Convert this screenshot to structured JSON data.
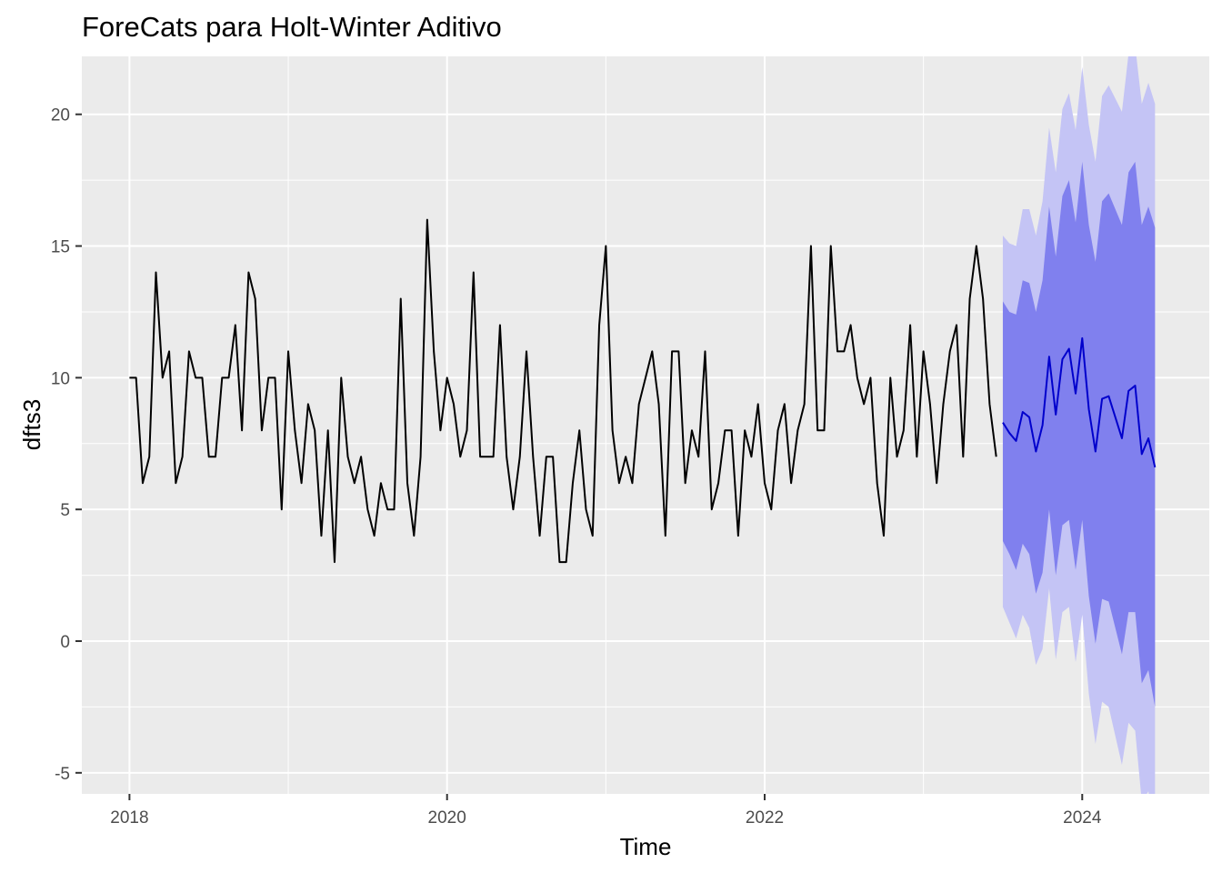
{
  "chart_data": {
    "type": "line",
    "title": "ForeCats para Holt-Winter Aditivo",
    "xlabel": "Time",
    "ylabel": "dfts3",
    "xlim": [
      2017.7,
      2024.8
    ],
    "ylim": [
      -5.8,
      22.2
    ],
    "x_ticks": [
      2018,
      2020,
      2022,
      2024
    ],
    "x_tick_labels": [
      "2018",
      "2020",
      "2022",
      "2024"
    ],
    "y_ticks": [
      -5,
      0,
      5,
      10,
      15,
      20
    ],
    "y_tick_labels": [
      "-5",
      "0",
      "5",
      "10",
      "15",
      "20"
    ],
    "grid": true,
    "legend": "none",
    "colors": {
      "panel_bg": "#ebebeb",
      "grid_major": "#ffffff",
      "observed": "#000000",
      "forecast": "#0000cc",
      "band_80": "#8080ee",
      "band_95": "#c4c4f5"
    },
    "series": [
      {
        "role": "observed",
        "start": 2018.0,
        "frequency": 24,
        "values": [
          10,
          10,
          6,
          7,
          14,
          10,
          11,
          6,
          7,
          11,
          10,
          10,
          7,
          7,
          10,
          10,
          12,
          8,
          14,
          13,
          8,
          10,
          10,
          5,
          11,
          8,
          6,
          9,
          8,
          4,
          8,
          3,
          10,
          7,
          6,
          7,
          5,
          4,
          6,
          5,
          5,
          13,
          6,
          4,
          7,
          16,
          11,
          8,
          10,
          9,
          7,
          8,
          14,
          7,
          7,
          7,
          12,
          7,
          5,
          7,
          11,
          7,
          4,
          7,
          7,
          3,
          3,
          6,
          8,
          5,
          4,
          12,
          15,
          8,
          6,
          7,
          6,
          9,
          10,
          11,
          9,
          4,
          11,
          11,
          6,
          8,
          7,
          11,
          5,
          6,
          8,
          8,
          4,
          8,
          7,
          9,
          6,
          5,
          8,
          9,
          6,
          8,
          9,
          15,
          8,
          8,
          15,
          11,
          11,
          12,
          10,
          9,
          10,
          6,
          4,
          10,
          7,
          8,
          12,
          7,
          11,
          9,
          6,
          9,
          11,
          12,
          7,
          13,
          15,
          13,
          9,
          7
        ]
      },
      {
        "role": "forecast",
        "start": 2023.5,
        "frequency": 24,
        "values": [
          8.3,
          7.9,
          7.6,
          8.7,
          8.5,
          7.2,
          8.2,
          10.8,
          8.6,
          10.7,
          11.1,
          9.4,
          11.5,
          8.8,
          7.2,
          9.2,
          9.3,
          8.5,
          7.7,
          9.5,
          9.7,
          7.1,
          7.7,
          6.6
        ]
      },
      {
        "role": "interval",
        "level": 80,
        "lower": [
          3.8,
          3.3,
          2.7,
          3.7,
          3.3,
          1.8,
          2.6,
          5.0,
          2.5,
          4.4,
          4.6,
          2.7,
          4.6,
          1.7,
          -0.1,
          1.6,
          1.5,
          0.5,
          -0.5,
          1.1,
          1.1,
          -1.6,
          -1.1,
          -2.5
        ],
        "upper": [
          12.9,
          12.5,
          12.4,
          13.7,
          13.6,
          12.5,
          13.7,
          16.5,
          14.6,
          16.9,
          17.5,
          15.9,
          18.2,
          15.8,
          14.4,
          16.7,
          17.0,
          16.4,
          15.8,
          17.8,
          18.2,
          15.8,
          16.5,
          15.7
        ]
      },
      {
        "role": "interval",
        "level": 95,
        "lower": [
          1.3,
          0.7,
          0.1,
          1.0,
          0.5,
          -0.9,
          -0.3,
          2.0,
          -0.7,
          1.1,
          1.3,
          -0.8,
          1.0,
          -2.0,
          -3.9,
          -2.3,
          -2.5,
          -3.6,
          -4.7,
          -3.1,
          -3.4,
          -6.1,
          -5.7,
          -7.1
        ],
        "upper": [
          15.4,
          15.1,
          15.0,
          16.4,
          16.4,
          15.4,
          16.7,
          19.5,
          17.8,
          20.2,
          20.8,
          19.4,
          21.8,
          19.6,
          18.2,
          20.7,
          21.1,
          20.6,
          20.1,
          22.3,
          22.6,
          20.4,
          21.2,
          20.4
        ]
      }
    ]
  }
}
